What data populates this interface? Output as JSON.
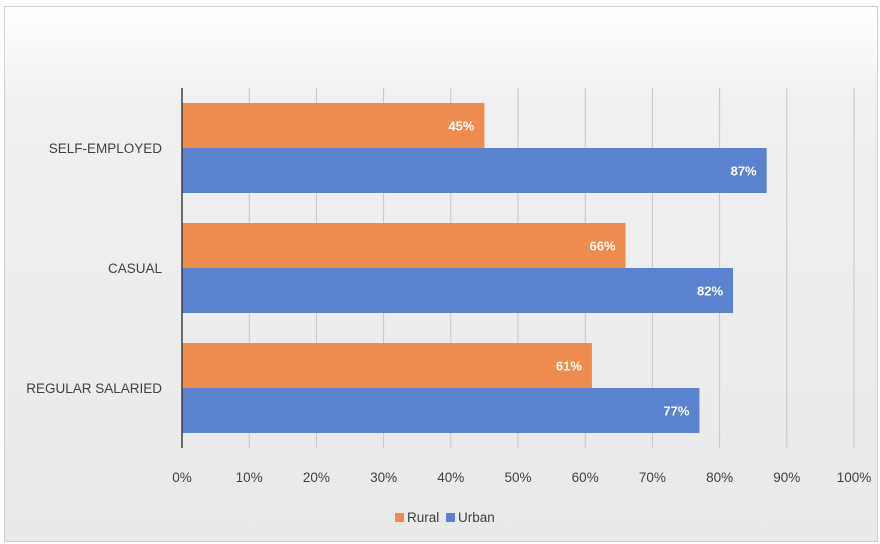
{
  "chart_data": {
    "type": "bar",
    "orientation": "horizontal",
    "categories": [
      "SELF-EMPLOYED",
      "CASUAL",
      "REGULAR SALARIED"
    ],
    "series": [
      {
        "name": "Rural",
        "values": [
          45,
          66,
          61
        ],
        "labels": [
          "45%",
          "66%",
          "61%"
        ],
        "color": "#ED8C4E"
      },
      {
        "name": "Urban",
        "values": [
          87,
          82,
          77
        ],
        "labels": [
          "87%",
          "82%",
          "77%"
        ],
        "color": "#5B82CE"
      }
    ],
    "x_ticks": [
      "0%",
      "10%",
      "20%",
      "30%",
      "40%",
      "50%",
      "60%",
      "70%",
      "80%",
      "90%",
      "100%"
    ],
    "xlim": [
      0,
      100
    ],
    "title": "",
    "xlabel": "",
    "ylabel": "",
    "grid": true,
    "legend_position": "bottom",
    "colors": {
      "gridline": "#c8c8c8",
      "axis": "#404040",
      "text": "#404040"
    }
  }
}
